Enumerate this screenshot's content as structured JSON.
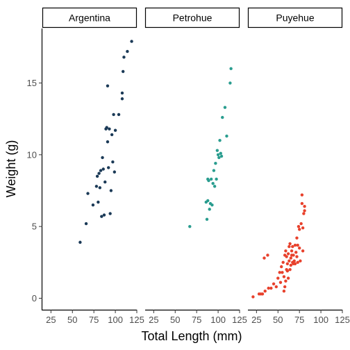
{
  "chart_data": {
    "type": "scatter",
    "xlabel": "Total Length (mm)",
    "ylabel": "Weight (g)",
    "xlim": [
      15,
      125
    ],
    "ylim": [
      -0.8,
      18.8
    ],
    "x_ticks": [
      25,
      50,
      75,
      100,
      125
    ],
    "y_ticks": [
      0,
      5,
      10,
      15
    ],
    "grid": false,
    "legend": "none",
    "panels": [
      {
        "name": "Argentina",
        "color": "#1b3a57",
        "points": [
          [
            59,
            3.9
          ],
          [
            66,
            5.2
          ],
          [
            68,
            7.3
          ],
          [
            74,
            6.5
          ],
          [
            78,
            7.8
          ],
          [
            79,
            8.5
          ],
          [
            80,
            6.7
          ],
          [
            81,
            8.7
          ],
          [
            82,
            7.7
          ],
          [
            83,
            8.9
          ],
          [
            84,
            5.7
          ],
          [
            85,
            9.8
          ],
          [
            86,
            9.0
          ],
          [
            87,
            5.8
          ],
          [
            88,
            8.1
          ],
          [
            89,
            11.8
          ],
          [
            90,
            11.9
          ],
          [
            91,
            10.9
          ],
          [
            91,
            14.8
          ],
          [
            92,
            9.1
          ],
          [
            93,
            11.8
          ],
          [
            94,
            5.9
          ],
          [
            95,
            7.5
          ],
          [
            96,
            11.4
          ],
          [
            97,
            9.5
          ],
          [
            98,
            12.8
          ],
          [
            99,
            8.8
          ],
          [
            100,
            11.7
          ],
          [
            104,
            12.8
          ],
          [
            108,
            13.9
          ],
          [
            108,
            14.3
          ],
          [
            109,
            15.8
          ],
          [
            110,
            16.8
          ],
          [
            114,
            17.2
          ],
          [
            119,
            17.9
          ]
        ]
      },
      {
        "name": "Petrohue",
        "color": "#2a9d8f",
        "points": [
          [
            67,
            5.0
          ],
          [
            86,
            6.7
          ],
          [
            87,
            5.5
          ],
          [
            88,
            6.8
          ],
          [
            88,
            8.3
          ],
          [
            89,
            8.2
          ],
          [
            90,
            6.2
          ],
          [
            91,
            6.6
          ],
          [
            92,
            8.3
          ],
          [
            93,
            6.5
          ],
          [
            94,
            8.0
          ],
          [
            95,
            8.9
          ],
          [
            96,
            7.8
          ],
          [
            97,
            9.4
          ],
          [
            98,
            8.3
          ],
          [
            99,
            10.3
          ],
          [
            100,
            10.0
          ],
          [
            101,
            9.8
          ],
          [
            102,
            11.0
          ],
          [
            103,
            10.1
          ],
          [
            104,
            9.9
          ],
          [
            105,
            12.6
          ],
          [
            108,
            13.3
          ],
          [
            110,
            11.3
          ],
          [
            114,
            15.0
          ],
          [
            115,
            16.0
          ]
        ]
      },
      {
        "name": "Puyehue",
        "color": "#e8412c",
        "points": [
          [
            21,
            0.1
          ],
          [
            28,
            0.3
          ],
          [
            30,
            0.3
          ],
          [
            32,
            0.3
          ],
          [
            34,
            2.8
          ],
          [
            35,
            0.5
          ],
          [
            38,
            3.0
          ],
          [
            39,
            0.7
          ],
          [
            42,
            0.7
          ],
          [
            45,
            1.0
          ],
          [
            48,
            0.8
          ],
          [
            50,
            1.4
          ],
          [
            52,
            1.8
          ],
          [
            53,
            1.1
          ],
          [
            54,
            2.2
          ],
          [
            55,
            1.8
          ],
          [
            56,
            2.5
          ],
          [
            57,
            0.5
          ],
          [
            57,
            1.5
          ],
          [
            58,
            3.0
          ],
          [
            58,
            0.8
          ],
          [
            59,
            1.2
          ],
          [
            59,
            3.3
          ],
          [
            60,
            2.0
          ],
          [
            60,
            2.9
          ],
          [
            61,
            1.9
          ],
          [
            61,
            2.4
          ],
          [
            62,
            3.1
          ],
          [
            62,
            1.4
          ],
          [
            63,
            2.6
          ],
          [
            63,
            3.6
          ],
          [
            64,
            2.0
          ],
          [
            64,
            3.8
          ],
          [
            65,
            2.8
          ],
          [
            65,
            2.3
          ],
          [
            66,
            3.0
          ],
          [
            66,
            3.3
          ],
          [
            67,
            2.5
          ],
          [
            67,
            3.6
          ],
          [
            68,
            2.4
          ],
          [
            68,
            3.0
          ],
          [
            69,
            2.6
          ],
          [
            70,
            3.7
          ],
          [
            70,
            2.4
          ],
          [
            71,
            3.2
          ],
          [
            72,
            2.9
          ],
          [
            72,
            4.2
          ],
          [
            73,
            2.5
          ],
          [
            73,
            3.7
          ],
          [
            74,
            5.0
          ],
          [
            75,
            3.5
          ],
          [
            75,
            4.8
          ],
          [
            76,
            2.6
          ],
          [
            77,
            5.2
          ],
          [
            78,
            7.2
          ],
          [
            78,
            6.6
          ],
          [
            79,
            4.9
          ],
          [
            79,
            3.3
          ],
          [
            80,
            5.9
          ],
          [
            81,
            6.1
          ],
          [
            81,
            6.4
          ]
        ]
      }
    ]
  }
}
